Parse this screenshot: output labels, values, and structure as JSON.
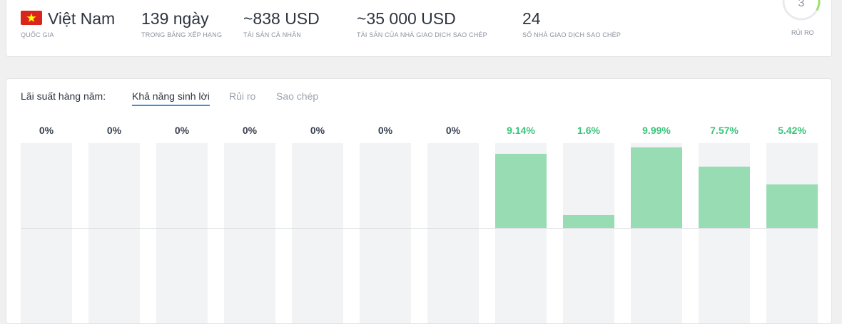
{
  "summary": {
    "country": {
      "value": "Việt Nam",
      "label": "QUỐC GIA"
    },
    "days": {
      "value": "139 ngày",
      "label": "TRONG BẢNG XẾP HẠNG"
    },
    "personal_assets": {
      "value": "~838 USD",
      "label": "TÀI SẢN CÁ NHÂN"
    },
    "copier_assets": {
      "value": "~35 000 USD",
      "label": "TÀI SẢN CỦA NHÀ GIAO DỊCH SAO CHÉP"
    },
    "copiers": {
      "value": "24",
      "label": "SỐ NHÀ GIAO DỊCH SAO CHÉP"
    },
    "risk": {
      "value": "3",
      "label": "RỦI RO"
    }
  },
  "tabs": {
    "prefix": "Lãi suất hàng năm:",
    "items": [
      {
        "label": "Khả năng sinh lời",
        "active": true
      },
      {
        "label": "Rủi ro",
        "active": false
      },
      {
        "label": "Sao chép",
        "active": false
      }
    ]
  },
  "colors": {
    "positive": "#3cc47c",
    "neutral": "#3a4250",
    "bar": "#98dcb4",
    "track": "#f2f3f5",
    "tab_underline": "#3a8fd9"
  },
  "chart_data": {
    "type": "bar",
    "categories": [
      "",
      "",
      "",
      "",
      "",
      "",
      "",
      "",
      "",
      "",
      "",
      ""
    ],
    "values": [
      0,
      0,
      0,
      0,
      0,
      0,
      0,
      9.14,
      1.6,
      9.99,
      7.57,
      5.42
    ],
    "labels": [
      "0%",
      "0%",
      "0%",
      "0%",
      "0%",
      "0%",
      "0%",
      "9.14%",
      "1.6%",
      "9.99%",
      "7.57%",
      "5.42%"
    ],
    "ylim": [
      -10.5,
      10.5
    ],
    "grid": false
  }
}
